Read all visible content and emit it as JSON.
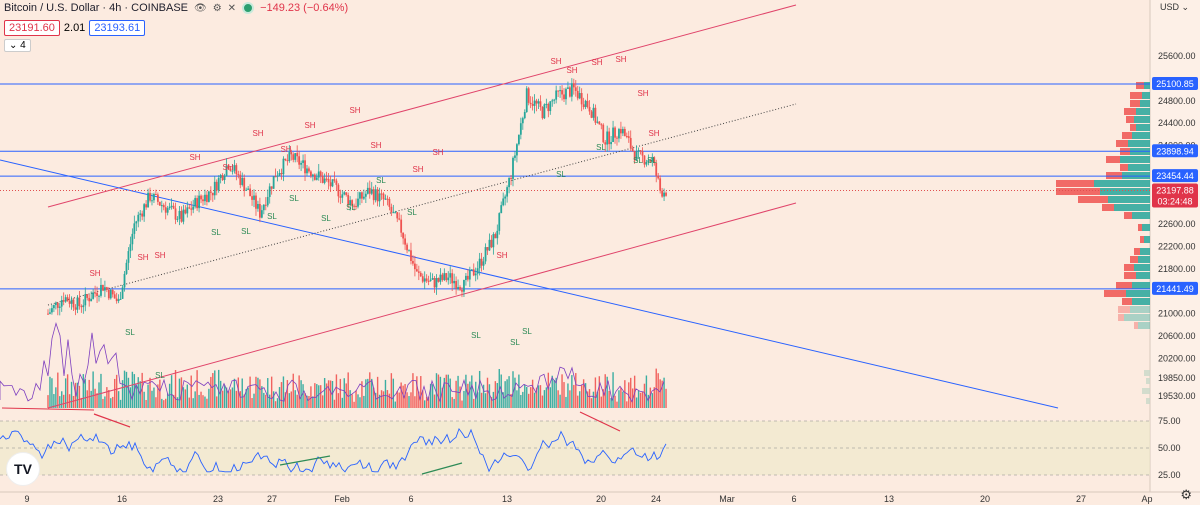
{
  "header": {
    "title": "Bitcoin / U.S. Dollar · 4h · COINBASE",
    "change": "−149.23 (−0.64%)",
    "bid": "23191.60",
    "spread": "2.01",
    "ask": "23193.61",
    "collapse_label": "4",
    "currency": "USD"
  },
  "colors": {
    "up": "#26a69a",
    "down": "#ef5350",
    "hline": "#2962ff",
    "channel": "#e0446a",
    "rsi": "#2962ff",
    "bg": "#fcebe0"
  },
  "chart_data": {
    "type": "candlestick",
    "symbol": "BTCUSD",
    "timeframe": "4h",
    "y_ticks": [
      19530,
      19850,
      20200,
      20600,
      21000,
      21800,
      22200,
      22600,
      24000,
      24400,
      24800,
      25600
    ],
    "x_ticks": [
      "9",
      "16",
      "23",
      "27",
      "Feb",
      "6",
      "13",
      "20",
      "24",
      "Mar",
      "6",
      "13",
      "20",
      "27",
      "Ap"
    ],
    "horizontal_levels": [
      {
        "price": 25100.85,
        "label": "25100.85"
      },
      {
        "price": 23898.94,
        "label": "23898.94"
      },
      {
        "price": 23454.44,
        "label": "23454.44"
      },
      {
        "price": 21441.49,
        "label": "21441.49"
      }
    ],
    "last_price": {
      "price": 23197.88,
      "label": "23197.88",
      "countdown": "03:24:48"
    },
    "price_path": [
      [
        1,
        21000
      ],
      [
        3,
        21300
      ],
      [
        5,
        21150
      ],
      [
        8,
        21500
      ],
      [
        10,
        21200
      ],
      [
        12,
        22600
      ],
      [
        14,
        23100
      ],
      [
        16,
        22900
      ],
      [
        18,
        22700
      ],
      [
        20,
        23000
      ],
      [
        22,
        23200
      ],
      [
        24,
        23700
      ],
      [
        26,
        23300
      ],
      [
        28,
        22800
      ],
      [
        30,
        23500
      ],
      [
        32,
        23800
      ],
      [
        34,
        23600
      ],
      [
        36,
        23400
      ],
      [
        38,
        23200
      ],
      [
        40,
        22950
      ],
      [
        42,
        23200
      ],
      [
        44,
        23000
      ],
      [
        46,
        22500
      ],
      [
        48,
        21700
      ],
      [
        50,
        21550
      ],
      [
        52,
        21650
      ],
      [
        54,
        21500
      ],
      [
        56,
        21900
      ],
      [
        58,
        22400
      ],
      [
        60,
        23500
      ],
      [
        62,
        24900
      ],
      [
        64,
        24600
      ],
      [
        66,
        24900
      ],
      [
        68,
        25000
      ],
      [
        70,
        24700
      ],
      [
        72,
        24100
      ],
      [
        74,
        24300
      ],
      [
        76,
        23800
      ],
      [
        78,
        23750
      ],
      [
        79,
        23197.88
      ]
    ],
    "swing_labels": [
      {
        "text": "SH",
        "x": 95,
        "y": 276
      },
      {
        "text": "SH",
        "x": 143,
        "y": 260
      },
      {
        "text": "SH",
        "x": 160,
        "y": 258
      },
      {
        "text": "SH",
        "x": 195,
        "y": 160
      },
      {
        "text": "SH",
        "x": 228,
        "y": 170
      },
      {
        "text": "SH",
        "x": 258,
        "y": 136
      },
      {
        "text": "SH",
        "x": 286,
        "y": 152
      },
      {
        "text": "SH",
        "x": 310,
        "y": 128
      },
      {
        "text": "SH",
        "x": 355,
        "y": 113
      },
      {
        "text": "SH",
        "x": 376,
        "y": 148
      },
      {
        "text": "SH",
        "x": 418,
        "y": 172
      },
      {
        "text": "SH",
        "x": 438,
        "y": 155
      },
      {
        "text": "SH",
        "x": 502,
        "y": 258
      },
      {
        "text": "SH",
        "x": 556,
        "y": 64
      },
      {
        "text": "SH",
        "x": 572,
        "y": 73
      },
      {
        "text": "SH",
        "x": 597,
        "y": 65
      },
      {
        "text": "SH",
        "x": 621,
        "y": 62
      },
      {
        "text": "SH",
        "x": 643,
        "y": 96
      },
      {
        "text": "SH",
        "x": 654,
        "y": 136
      },
      {
        "text": "SL",
        "x": 130,
        "y": 335
      },
      {
        "text": "SL",
        "x": 160,
        "y": 378
      },
      {
        "text": "SL",
        "x": 216,
        "y": 235
      },
      {
        "text": "SL",
        "x": 246,
        "y": 234
      },
      {
        "text": "SL",
        "x": 272,
        "y": 219
      },
      {
        "text": "SL",
        "x": 294,
        "y": 201
      },
      {
        "text": "SL",
        "x": 326,
        "y": 221
      },
      {
        "text": "SL",
        "x": 351,
        "y": 210
      },
      {
        "text": "SL",
        "x": 381,
        "y": 183
      },
      {
        "text": "SL",
        "x": 412,
        "y": 215
      },
      {
        "text": "SL",
        "x": 476,
        "y": 338
      },
      {
        "text": "SL",
        "x": 515,
        "y": 345
      },
      {
        "text": "SL",
        "x": 527,
        "y": 334
      },
      {
        "text": "SL",
        "x": 561,
        "y": 177
      },
      {
        "text": "SL",
        "x": 601,
        "y": 150
      },
      {
        "text": "SL",
        "x": 638,
        "y": 163
      },
      {
        "text": "SL",
        "x": 652,
        "y": 163
      }
    ],
    "rsi": {
      "levels": [
        75,
        50,
        25
      ],
      "level_labels": [
        "75.00",
        "50.00",
        "25.00"
      ]
    }
  }
}
